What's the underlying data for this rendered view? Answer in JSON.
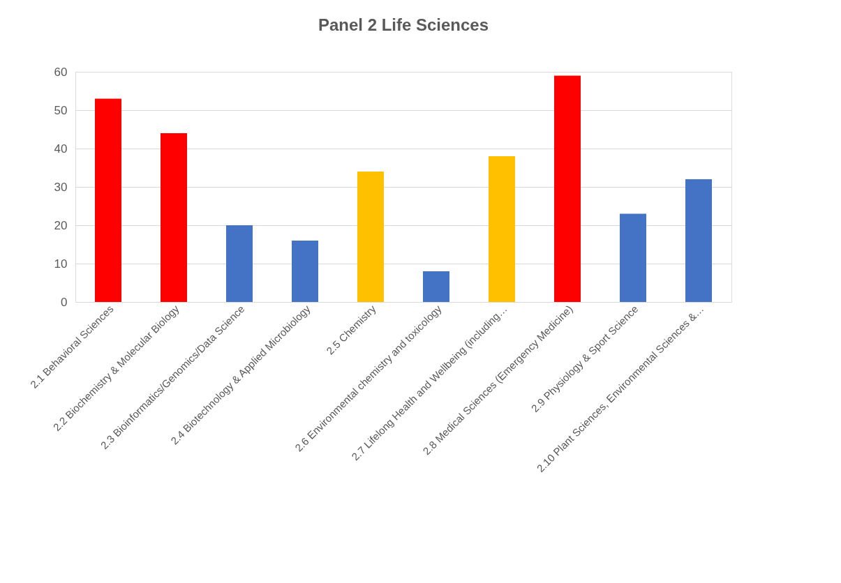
{
  "chart_data": {
    "type": "bar",
    "title": "Panel 2 Life Sciences",
    "categories": [
      "2.1 Behavioral Sciences",
      "2.2 Biochemistry & Molecular Biology",
      "2.3 Bioinformatics/Genomics/Data Science",
      "2.4 Biotechnology & Applied Microbiology",
      "2.5  Chemistry",
      "2.6 Environmental chemistry and toxicology",
      "2.7  Lifelong Health and Wellbeing (including…",
      "2.8 Medical Sciences (Emergency Medicine)",
      "2.9 Physiology & Sport Science",
      "2.10 Plant Sciences, Environmental Sciences &…"
    ],
    "values": [
      53,
      44,
      20,
      16,
      34,
      8,
      38,
      59,
      23,
      32
    ],
    "colors": [
      "#ff0000",
      "#ff0000",
      "#4472c4",
      "#4472c4",
      "#ffc000",
      "#4472c4",
      "#ffc000",
      "#ff0000",
      "#4472c4",
      "#4472c4"
    ],
    "ylim": [
      0,
      60
    ],
    "yticks": [
      0,
      10,
      20,
      30,
      40,
      50,
      60
    ],
    "grid": "y"
  }
}
